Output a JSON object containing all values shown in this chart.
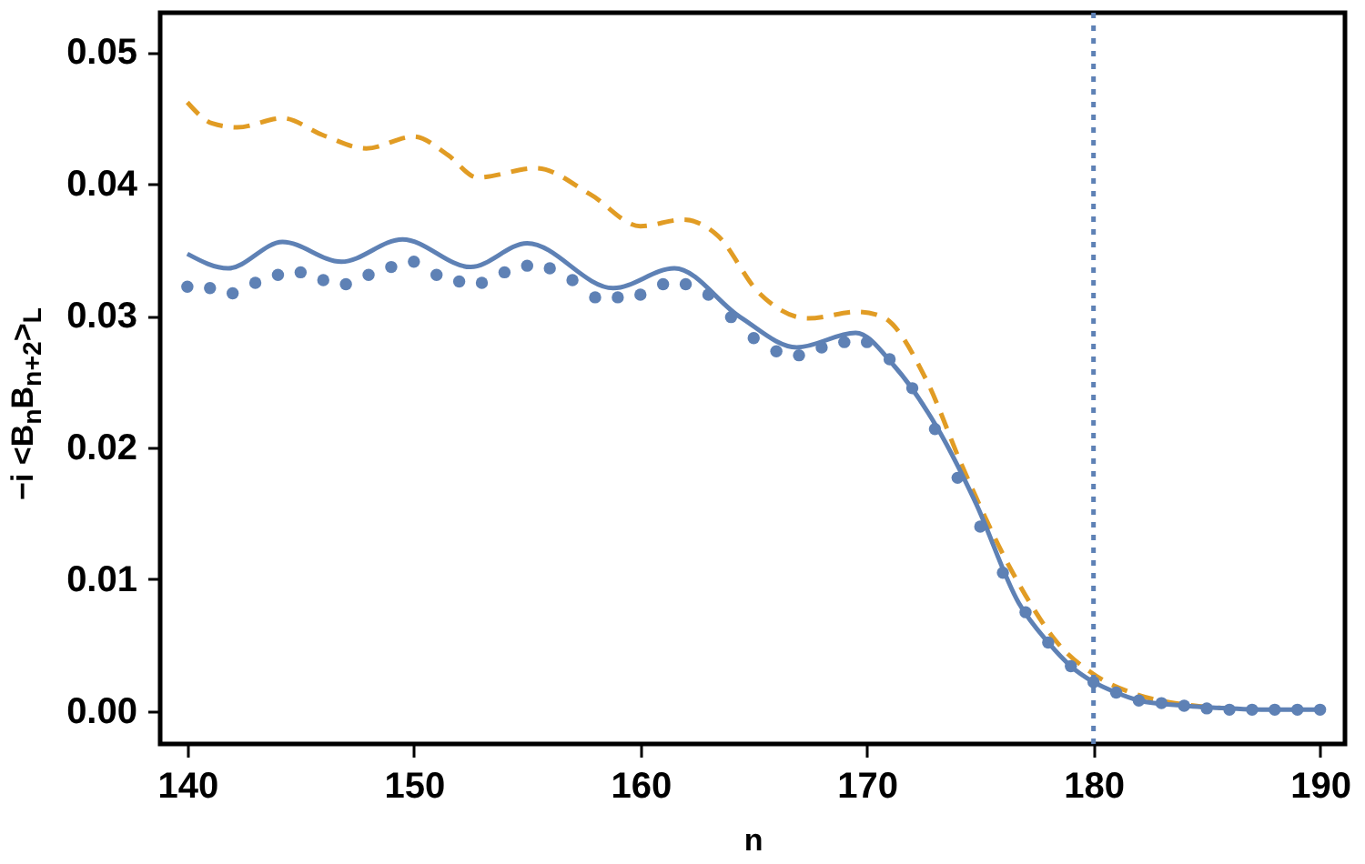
{
  "chart_data": {
    "type": "line",
    "xlabel": "n",
    "ylabel": "−i <B$_{n}$B$_{n+2}$>$_{L}$",
    "xlim": [
      138.8,
      191.1
    ],
    "ylim": [
      -0.0025,
      0.053
    ],
    "xticks": [
      140,
      150,
      160,
      170,
      180,
      190
    ],
    "yticks": [
      {
        "value": 0,
        "label": "0.00"
      },
      {
        "value": 0.01,
        "label": "0.01"
      },
      {
        "value": 0.02,
        "label": "0.02"
      },
      {
        "value": 0.03,
        "label": "0.03"
      },
      {
        "value": 0.04,
        "label": "0.04"
      },
      {
        "value": 0.05,
        "label": "0.05"
      }
    ],
    "grid": false,
    "series": [
      {
        "line_style": "dashed",
        "color": "#e19c24",
        "x": [
          140,
          141.1,
          142.2,
          144.2,
          146,
          147.9,
          150,
          151.5,
          152.8,
          155.4,
          157.8,
          160,
          161.9,
          163.4,
          165.2,
          167.4,
          169.6,
          170.7,
          172.6,
          174.2,
          176.4,
          177.2,
          178.3,
          180,
          182,
          184,
          186
        ],
        "values": [
          0.0462,
          0.0446,
          0.0443,
          0.045,
          0.0437,
          0.0427,
          0.0436,
          0.0422,
          0.0405,
          0.0412,
          0.0392,
          0.0368,
          0.0373,
          0.0361,
          0.0318,
          0.0298,
          0.0303,
          0.0299,
          0.0252,
          0.0186,
          0.0106,
          0.0082,
          0.0054,
          0.0028,
          0.0012,
          0.0005,
          0.0002
        ]
      },
      {
        "line_style": "solid",
        "color": "#5e81b5",
        "x": [
          140,
          141.8,
          144.2,
          146.8,
          149.5,
          152.5,
          155,
          158.8,
          161.5,
          164.4,
          166.9,
          169.5,
          171.2,
          173.1,
          174.8,
          176.7,
          178,
          179,
          180,
          181,
          182,
          184,
          186,
          188,
          190
        ],
        "values": [
          0.0347,
          0.0336,
          0.0356,
          0.0341,
          0.0358,
          0.0337,
          0.0355,
          0.0321,
          0.0336,
          0.0299,
          0.0276,
          0.0287,
          0.0262,
          0.0215,
          0.0158,
          0.0082,
          0.0052,
          0.0034,
          0.0022,
          0.0014,
          0.0008,
          0.0004,
          0.0002,
          0.0001,
          0.0001
        ]
      },
      {
        "type": "scatter",
        "marker": "circle",
        "color": "#5e81b5",
        "x": [
          140,
          141,
          142,
          143,
          144,
          145,
          146,
          147,
          148,
          149,
          150,
          151,
          152,
          153,
          154,
          155,
          156,
          157,
          158,
          159,
          160,
          161,
          162,
          163,
          164,
          165,
          166,
          167,
          168,
          169,
          170,
          171,
          172,
          173,
          174,
          175,
          176,
          177,
          178,
          179,
          180,
          181,
          182,
          183,
          184,
          185,
          186,
          187,
          188,
          189,
          190
        ],
        "values": [
          0.0322,
          0.0321,
          0.0317,
          0.0325,
          0.0331,
          0.0333,
          0.0327,
          0.0324,
          0.0331,
          0.0337,
          0.0341,
          0.0331,
          0.0326,
          0.0325,
          0.0333,
          0.0338,
          0.0336,
          0.0327,
          0.0314,
          0.0314,
          0.0316,
          0.0324,
          0.0324,
          0.0316,
          0.0299,
          0.0283,
          0.0273,
          0.027,
          0.0276,
          0.028,
          0.028,
          0.0267,
          0.0245,
          0.0214,
          0.0177,
          0.014,
          0.0105,
          0.0075,
          0.0052,
          0.0034,
          0.0022,
          0.0014,
          0.0008,
          0.0006,
          0.0004,
          0.0002,
          0.0001,
          0.0001,
          0.0001,
          0.0001,
          0.0001
        ]
      }
    ],
    "ref_lines": [
      {
        "axis": "x",
        "value": 180,
        "color": "#5e81b5",
        "line_style": "dotted"
      }
    ]
  }
}
